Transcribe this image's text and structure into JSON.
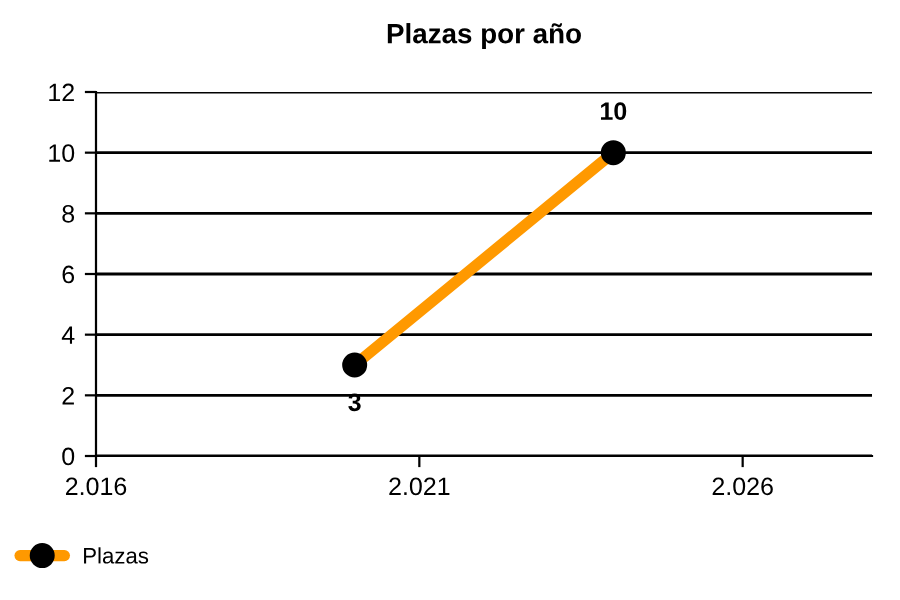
{
  "chart_data": {
    "type": "line",
    "title": "Plazas por año",
    "x": [
      2020,
      2024
    ],
    "series": [
      {
        "name": "Plazas",
        "color": "#ff9900",
        "values": [
          3,
          10
        ]
      }
    ],
    "xlim": [
      2016,
      2028
    ],
    "xticks": [
      {
        "value": 2016,
        "label": "2.016"
      },
      {
        "value": 2021,
        "label": "2.021"
      },
      {
        "value": 2026,
        "label": "2.026"
      }
    ],
    "ylim": [
      0,
      12
    ],
    "yticks": [
      0,
      2,
      4,
      6,
      8,
      10,
      12
    ],
    "grid": "y",
    "legend": "bottom left",
    "marker": "circle",
    "line_style": "solid",
    "data_labels": true
  }
}
